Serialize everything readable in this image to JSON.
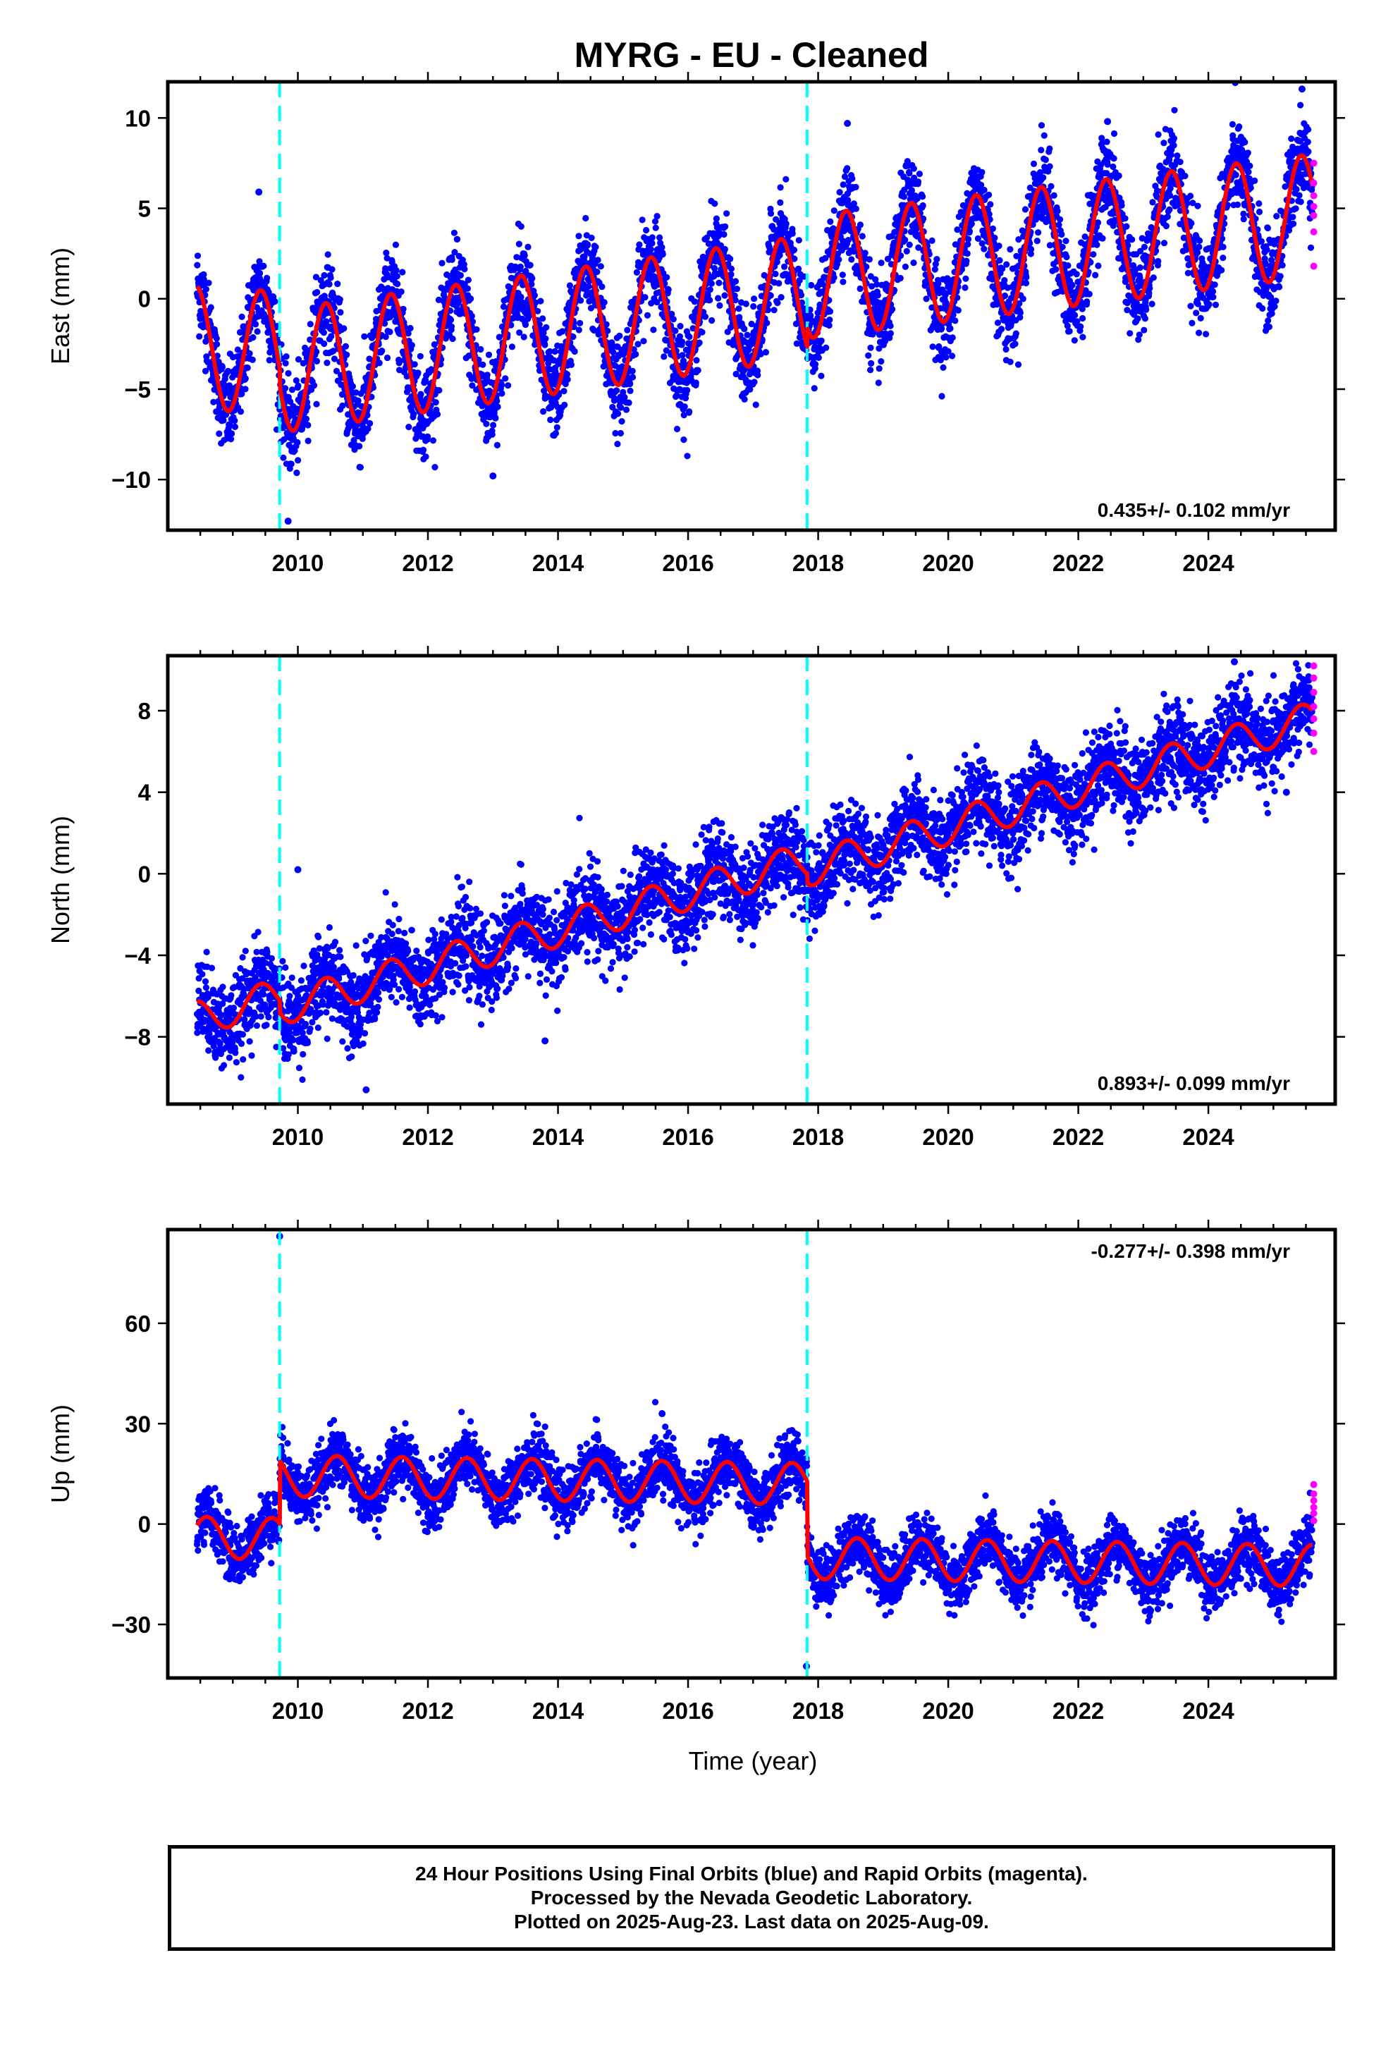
{
  "title": "MYRG  - EU - Cleaned",
  "colors": {
    "final_orbits": "#0000ff",
    "rapid_orbits": "#ff00ff",
    "model_fit": "#ff0000",
    "offset_lines": "#00ffff",
    "frame": "#000000"
  },
  "x_tick_labels": [
    "2010",
    "2012",
    "2014",
    "2016",
    "2018",
    "2020",
    "2022",
    "2024"
  ],
  "x_axis_label": "Time (year)",
  "footer": {
    "line1": "24 Hour Positions Using Final Orbits (blue) and Rapid Orbits (magenta).",
    "line2": "Processed by the Nevada Geodetic Laboratory.",
    "line3": "Plotted on 2025-Aug-23. Last data on 2025-Aug-09."
  },
  "chart_data": [
    {
      "type": "scatter",
      "component": "East",
      "ylabel": "East (mm)",
      "xlim": [
        2008.0,
        2025.95
      ],
      "ylim": [
        -12.8,
        12.0
      ],
      "x_ticks": [
        2010,
        2012,
        2014,
        2016,
        2018,
        2020,
        2022,
        2024
      ],
      "y_ticks": [
        10,
        5,
        0,
        -5,
        -10
      ],
      "y_tick_labels": [
        "10",
        "5",
        "0",
        "−5",
        "−10"
      ],
      "rate_label": "0.435+/- 0.102 mm/yr",
      "data_start": 2008.45,
      "data_end": 2025.6,
      "offset_epochs": [
        2009.72,
        2017.83
      ],
      "model": {
        "segments": [
          {
            "from": 2008.45,
            "to": 2009.72,
            "value_at_start": -2.7,
            "value_at_end": -3.0
          },
          {
            "from": 2009.72,
            "to": 2017.83,
            "value_at_start": -4.0,
            "value_at_end": 0.1
          },
          {
            "from": 2017.83,
            "to": 2025.6,
            "value_at_start": 1.2,
            "value_at_end": 4.6
          }
        ],
        "annual_amplitude": 3.4,
        "annual_phase_year": 0.43,
        "scatter_sd": 1.25
      },
      "rapid_points": [
        {
          "x": 2025.62,
          "y": 7.5
        },
        {
          "x": 2025.62,
          "y": 6.4
        },
        {
          "x": 2025.62,
          "y": 5.7
        },
        {
          "x": 2025.62,
          "y": 5.1
        },
        {
          "x": 2025.62,
          "y": 4.6
        },
        {
          "x": 2025.62,
          "y": 3.7
        },
        {
          "x": 2025.62,
          "y": 1.8
        }
      ],
      "outliers": [
        {
          "x": 2009.85,
          "y": -12.3
        },
        {
          "x": 2025.44,
          "y": 11.6
        },
        {
          "x": 2018.45,
          "y": 9.7
        },
        {
          "x": 2022.45,
          "y": 9.8
        },
        {
          "x": 2009.4,
          "y": 5.9
        },
        {
          "x": 2013.0,
          "y": -9.8
        }
      ]
    },
    {
      "type": "scatter",
      "component": "North",
      "ylabel": "North (mm)",
      "xlim": [
        2008.0,
        2025.95
      ],
      "ylim": [
        -11.3,
        10.7
      ],
      "x_ticks": [
        2010,
        2012,
        2014,
        2016,
        2018,
        2020,
        2022,
        2024
      ],
      "y_ticks": [
        8,
        4,
        0,
        -4,
        -8
      ],
      "y_tick_labels": [
        "8",
        "4",
        "0",
        "−4",
        "−8"
      ],
      "rate_label": "0.893+/- 0.099 mm/yr",
      "data_start": 2008.45,
      "data_end": 2025.6,
      "offset_epochs": [
        2009.72,
        2017.83
      ],
      "model": {
        "segments": [
          {
            "from": 2008.45,
            "to": 2009.72,
            "value_at_start": -7.1,
            "value_at_end": -6.0
          },
          {
            "from": 2009.72,
            "to": 2017.83,
            "value_at_start": -6.6,
            "value_at_end": 0.7
          },
          {
            "from": 2017.83,
            "to": 2025.6,
            "value_at_start": 0.2,
            "value_at_end": 7.6
          }
        ],
        "annual_amplitude": 0.85,
        "annual_phase_year": 0.43,
        "scatter_sd": 1.05
      },
      "rapid_points": [
        {
          "x": 2025.62,
          "y": 10.2
        },
        {
          "x": 2025.62,
          "y": 9.6
        },
        {
          "x": 2025.62,
          "y": 8.9
        },
        {
          "x": 2025.62,
          "y": 8.2
        },
        {
          "x": 2025.62,
          "y": 7.6
        },
        {
          "x": 2025.62,
          "y": 6.9
        },
        {
          "x": 2025.62,
          "y": 6.0
        }
      ],
      "outliers": [
        {
          "x": 2010.0,
          "y": 0.2
        },
        {
          "x": 2013.8,
          "y": -8.2
        },
        {
          "x": 2011.05,
          "y": -10.6
        },
        {
          "x": 2024.4,
          "y": 10.4
        },
        {
          "x": 2025.2,
          "y": 4.0
        }
      ]
    },
    {
      "type": "scatter",
      "component": "Up",
      "ylabel": "Up (mm)",
      "xlim": [
        2008.0,
        2025.95
      ],
      "ylim": [
        -46.0,
        88.0
      ],
      "x_ticks": [
        2010,
        2012,
        2014,
        2016,
        2018,
        2020,
        2022,
        2024
      ],
      "y_ticks": [
        60,
        30,
        0,
        -30
      ],
      "y_tick_labels": [
        "60",
        "30",
        "0",
        "−30"
      ],
      "rate_label": "-0.277+/- 0.398 mm/yr",
      "data_start": 2008.45,
      "data_end": 2025.6,
      "offset_epochs": [
        2009.72,
        2017.83
      ],
      "model": {
        "segments": [
          {
            "from": 2008.45,
            "to": 2009.72,
            "value_at_start": -4.0,
            "value_at_end": -4.4
          },
          {
            "from": 2009.72,
            "to": 2017.83,
            "value_at_start": 14.4,
            "value_at_end": 12.0
          },
          {
            "from": 2017.83,
            "to": 2025.6,
            "value_at_start": -10.2,
            "value_at_end": -12.4
          }
        ],
        "annual_amplitude": 6.2,
        "annual_phase_year": 0.6,
        "scatter_sd": 4.4
      },
      "rapid_points": [
        {
          "x": 2025.62,
          "y": 11.8
        },
        {
          "x": 2025.62,
          "y": 9.0
        },
        {
          "x": 2025.62,
          "y": 7.0
        },
        {
          "x": 2025.62,
          "y": 5.0
        },
        {
          "x": 2025.62,
          "y": 3.2
        },
        {
          "x": 2025.62,
          "y": 1.0
        }
      ],
      "outliers": [
        {
          "x": 2009.72,
          "y": 86.0
        },
        {
          "x": 2017.82,
          "y": -42.5
        },
        {
          "x": 2015.6,
          "y": 33.0
        }
      ]
    }
  ]
}
